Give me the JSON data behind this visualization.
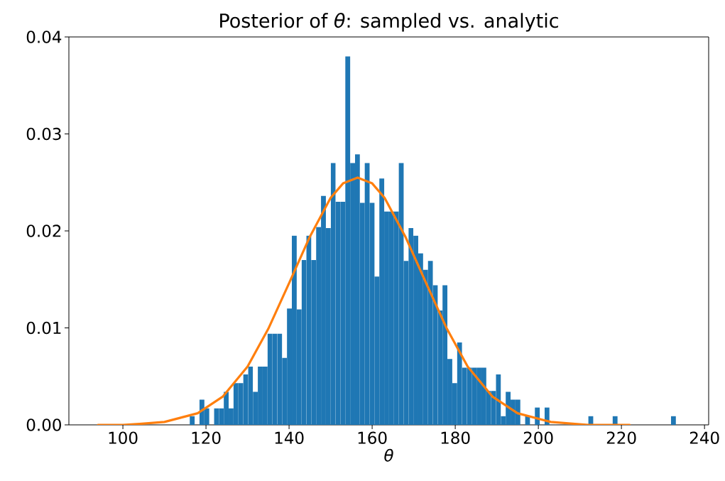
{
  "chart_data": {
    "type": "histogram",
    "title": "Posterior of *θ*: sampled vs. analytic",
    "xlabel": "θ",
    "xlim": [
      87,
      241
    ],
    "ylim": [
      0,
      0.04
    ],
    "xticks": [
      100,
      120,
      140,
      160,
      180,
      200,
      220,
      240
    ],
    "yticks": [
      {
        "value": 0,
        "label": "0.00"
      },
      {
        "value": 0.01,
        "label": "0.01"
      },
      {
        "value": 0.02,
        "label": "0.02"
      },
      {
        "value": 0.03,
        "label": "0.03"
      },
      {
        "value": 0.04,
        "label": "0.04"
      }
    ],
    "series": [
      {
        "color": "#1f77b4",
        "bins": [
          116.1,
          117.27,
          118.44,
          119.61,
          120.78,
          121.95,
          123.12,
          124.29,
          125.46,
          126.63,
          127.8,
          128.97,
          130.14,
          131.31,
          132.48,
          133.65,
          134.82,
          135.99,
          137.16,
          138.33,
          139.5,
          140.67,
          141.84,
          143.01,
          144.18,
          145.35,
          146.52,
          147.69,
          148.86,
          150.03,
          151.2,
          152.37,
          153.54,
          154.71,
          155.88,
          157.05,
          158.22,
          159.39,
          160.56,
          161.73,
          162.9,
          164.07,
          165.24,
          166.41,
          167.58,
          168.75,
          169.92,
          171.09,
          172.26,
          173.43,
          174.6,
          175.77,
          176.94,
          178.11,
          179.28,
          180.45,
          181.62,
          182.79,
          183.96,
          185.13,
          186.3,
          187.47,
          188.64,
          189.81,
          190.98,
          192.15,
          193.32,
          194.49,
          195.66,
          196.83,
          198.0,
          199.17,
          200.34,
          201.51,
          202.68,
          203.85,
          205.02,
          206.19,
          207.36,
          208.53,
          209.7,
          210.87,
          212.04,
          213.21,
          214.38,
          215.55,
          216.72,
          217.89,
          219.06,
          220.23,
          221.4,
          222.57,
          223.74,
          224.91,
          226.08,
          227.25,
          228.42,
          229.59,
          230.76,
          231.93,
          233.1
        ],
        "values": [
          0.0009,
          0,
          0.0026,
          0.0017,
          0,
          0.0017,
          0.0017,
          0.0034,
          0.0017,
          0.0043,
          0.0043,
          0.0052,
          0.006,
          0.0034,
          0.006,
          0.006,
          0.0094,
          0.0094,
          0.0094,
          0.0069,
          0.012,
          0.0195,
          0.0119,
          0.017,
          0.0195,
          0.017,
          0.0204,
          0.0236,
          0.0203,
          0.027,
          0.023,
          0.023,
          0.038,
          0.027,
          0.0279,
          0.0229,
          0.027,
          0.0229,
          0.0153,
          0.0254,
          0.022,
          0.022,
          0.022,
          0.027,
          0.0169,
          0.0203,
          0.0195,
          0.0177,
          0.016,
          0.0169,
          0.0144,
          0.0118,
          0.0144,
          0.0068,
          0.0043,
          0.0085,
          0.0059,
          0.0059,
          0.0059,
          0.0059,
          0.0059,
          0.0035,
          0.0035,
          0.0052,
          0.0009,
          0.0034,
          0.0026,
          0.0026,
          0,
          0.0009,
          0,
          0.0018,
          0,
          0.0018,
          0,
          0,
          0,
          0,
          0,
          0,
          0,
          0,
          0.0009,
          0,
          0,
          0,
          0,
          0.0009,
          0,
          0,
          0,
          0,
          0,
          0,
          0,
          0,
          0,
          0,
          0,
          0.0009
        ]
      },
      {
        "type": "line",
        "color": "#ff7f0e",
        "x": [
          94,
          100,
          104,
          110,
          118,
          124,
          130,
          135,
          140,
          145,
          150,
          153,
          156.5,
          160,
          163,
          168,
          173,
          178,
          183,
          189,
          195,
          203,
          212,
          222
        ],
        "values": [
          0,
          0,
          0.0001,
          0.0003,
          0.0012,
          0.0029,
          0.006,
          0.0099,
          0.0146,
          0.0194,
          0.0234,
          0.0249,
          0.0255,
          0.0249,
          0.0234,
          0.0194,
          0.0146,
          0.0099,
          0.006,
          0.0029,
          0.0012,
          0.0003,
          0,
          0
        ]
      }
    ]
  }
}
